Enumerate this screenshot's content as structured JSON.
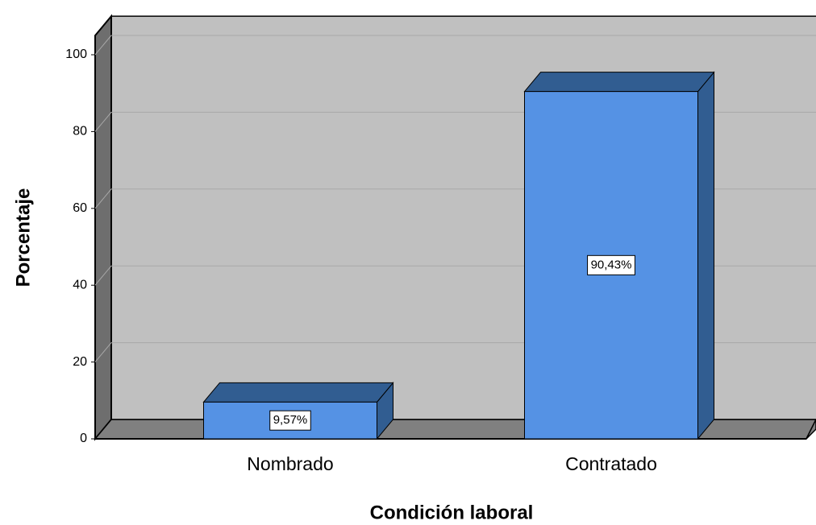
{
  "chart_data": {
    "type": "bar3d",
    "x_label": "Condición laboral",
    "y_label": "Porcentaje",
    "categories": [
      "Nombrado",
      "Contratado"
    ],
    "values": [
      9.57,
      90.43
    ],
    "value_labels": [
      "9,57%",
      "90,43%"
    ],
    "color": "#5592e4",
    "ylim": [
      0,
      105
    ],
    "yticks": [
      0,
      20,
      40,
      60,
      80,
      100
    ],
    "grid": true
  }
}
